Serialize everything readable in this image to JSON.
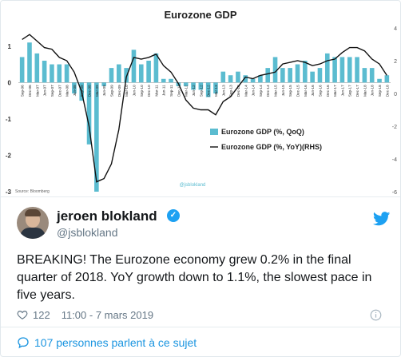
{
  "chart_data": {
    "type": "bar+line",
    "title": "Eurozone GDP",
    "categories": [
      "Sep-06",
      "Dec-06",
      "Mar-07",
      "Jun-07",
      "Sep-07",
      "Dec-07",
      "Mar-08",
      "Jun-08",
      "Sep-08",
      "Dec-08",
      "Mar-09",
      "Jun-09",
      "Sep-09",
      "Dec-09",
      "Mar-10",
      "Jun-10",
      "Sep-10",
      "Dec-10",
      "Mar-11",
      "Jun-11",
      "Sep-11",
      "Dec-11",
      "Mar-12",
      "Jun-12",
      "Sep-12",
      "Dec-12",
      "Mar-13",
      "Jun-13",
      "Sep-13",
      "Dec-13",
      "Mar-14",
      "Jun-14",
      "Sep-14",
      "Dec-14",
      "Mar-15",
      "Jun-15",
      "Sep-15",
      "Dec-15",
      "Mar-16",
      "Jun-16",
      "Sep-16",
      "Dec-16",
      "Mar-17",
      "Jun-17",
      "Sep-17",
      "Dec-17",
      "Mar-18",
      "Jun-18",
      "Sep-18",
      "Dec-18"
    ],
    "tick_labels": [
      "Sep-06",
      "Dec-06",
      "Mar-07",
      "Jun-07",
      "Sep-07",
      "Dec-07",
      "Mar-08",
      "Jun-08",
      "Sep-08",
      "Dec-08",
      "Mar-09",
      "Jun-09",
      "Sep-09",
      "Dec-09",
      "Mar-10",
      "Jun-10",
      "Sep-10",
      "Dec-10",
      "Mar-11",
      "Jun-11",
      "Sep-11",
      "Dec-11",
      "Mar-12",
      "Jun-12",
      "Sep-12",
      "Dec-12",
      "Mar-13",
      "Jun-13",
      "Sep-13",
      "Dec-13",
      "Mar-14",
      "Jun-14",
      "Sep-14",
      "Dec-14",
      "Mar-15",
      "Jun-15",
      "Sep-15",
      "Dec-15",
      "Mar-16",
      "Jun-16",
      "Sep-16",
      "Dec-16",
      "Mar-17",
      "Jun-17",
      "Sep-17",
      "Dec-17",
      "Mar-18",
      "Jun-18",
      "Sep-18",
      "Dec-18"
    ],
    "series": [
      {
        "name": "Eurozone GDP (%, QoQ)",
        "axis": "left",
        "kind": "bar",
        "color": "#5bbcd0",
        "values": [
          0.7,
          1.1,
          0.8,
          0.6,
          0.5,
          0.5,
          0.5,
          -0.3,
          -0.5,
          -1.7,
          -3.0,
          -0.1,
          0.4,
          0.5,
          0.4,
          0.9,
          0.5,
          0.6,
          0.8,
          0.1,
          0.1,
          -0.1,
          -0.1,
          -0.2,
          -0.2,
          -0.4,
          -0.3,
          0.3,
          0.2,
          0.3,
          0.2,
          0.1,
          0.2,
          0.4,
          0.7,
          0.4,
          0.4,
          0.5,
          0.6,
          0.3,
          0.4,
          0.8,
          0.7,
          0.7,
          0.7,
          0.7,
          0.4,
          0.4,
          0.1,
          0.2
        ]
      },
      {
        "name": "Eurozone GDP (%, YoY)(RHS)",
        "axis": "right",
        "kind": "line",
        "color": "#111111",
        "values": [
          3.3,
          3.6,
          3.2,
          2.8,
          2.7,
          2.2,
          2.0,
          1.3,
          0.1,
          -2.0,
          -5.4,
          -5.2,
          -4.3,
          -2.2,
          1.0,
          2.2,
          2.1,
          2.2,
          2.4,
          1.7,
          1.3,
          0.6,
          -0.4,
          -0.9,
          -1.0,
          -1.0,
          -1.3,
          -0.5,
          -0.2,
          0.4,
          1.0,
          0.9,
          1.1,
          1.2,
          1.3,
          1.8,
          1.9,
          2.0,
          1.9,
          1.7,
          1.8,
          2.0,
          2.1,
          2.5,
          2.8,
          2.8,
          2.6,
          2.1,
          1.8,
          1.1
        ]
      }
    ],
    "left_axis": {
      "ylim": [
        -3,
        1.5
      ],
      "ticks": [
        "1",
        "0",
        "-1",
        "-2",
        "-3"
      ]
    },
    "right_axis": {
      "ylim": [
        -6,
        4
      ],
      "ticks": [
        "4",
        "2",
        "0",
        "-2",
        "-4",
        "-6"
      ]
    },
    "legend_position": "center-right",
    "source_note": "Source: Bloomberg",
    "watermark": "@jsblokland"
  },
  "tweet": {
    "author_name": "jeroen blokland",
    "handle": "@jsblokland",
    "verified": "✓",
    "text": "BREAKING! The Eurozone economy grew 0.2% in the final quarter of 2018. YoY growth down to 1.1%, the slowest pace in five years.",
    "likes": "122",
    "timestamp": "11:00 - 7 mars 2019",
    "conversation": "107 personnes parlent à ce sujet"
  },
  "icons": {
    "heart": "heart-icon",
    "info": "info-icon",
    "bird": "twitter-bird-icon",
    "bubble": "reply-bubble-icon"
  },
  "colors": {
    "accent": "#1da1f2",
    "bar": "#5bbcd0",
    "line": "#111111",
    "muted": "#657786",
    "link": "#1b95e0"
  }
}
